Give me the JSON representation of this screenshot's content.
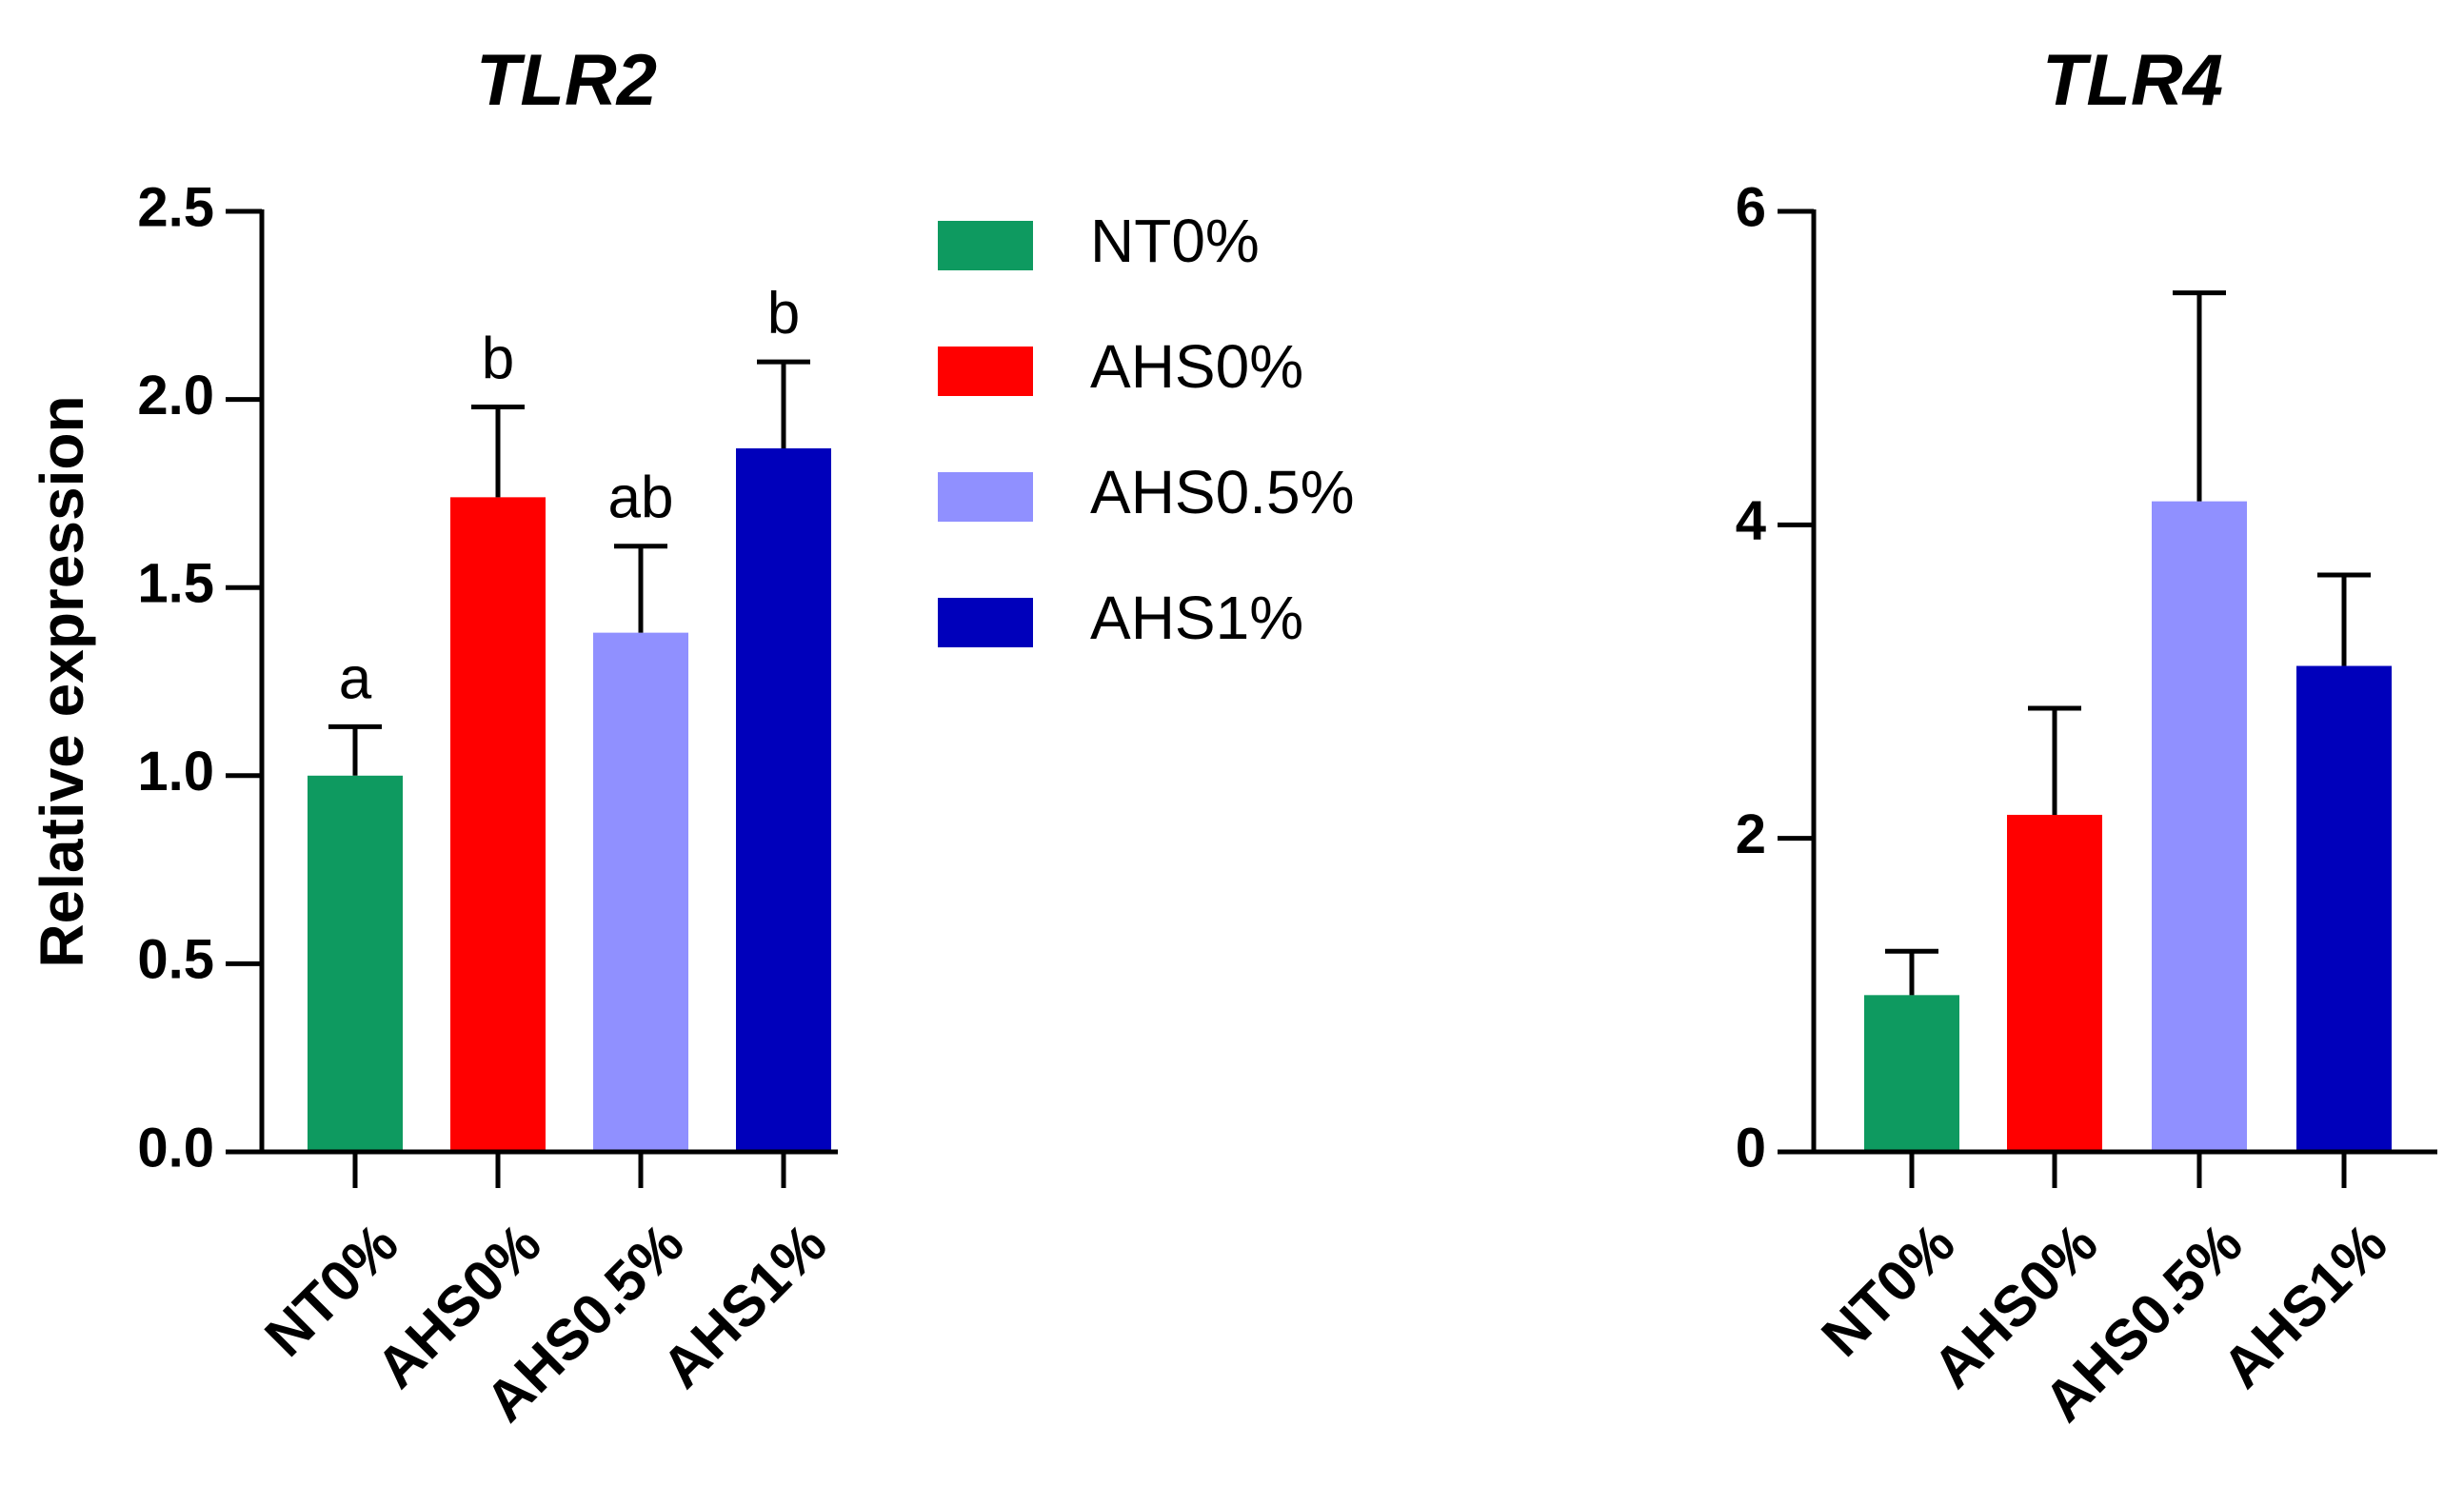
{
  "legend": [
    {
      "label": "NT0%",
      "color": "#0e9a60"
    },
    {
      "label": "AHS0%",
      "color": "#ff0000"
    },
    {
      "label": "AHS0.5%",
      "color": "#9090ff"
    },
    {
      "label": "AHS1%",
      "color": "#0000bb"
    }
  ],
  "chart_data": [
    {
      "type": "bar",
      "title": "TLR2",
      "xlabel": "",
      "ylabel": "Relative expression",
      "ylim": [
        0,
        2.5
      ],
      "yticks": [
        0.0,
        0.5,
        1.0,
        1.5,
        2.0,
        2.5
      ],
      "ytick_labels": [
        "0.0",
        "0.5",
        "1.0",
        "1.5",
        "2.0",
        "2.5"
      ],
      "categories": [
        "NT0%",
        "AHS0%",
        "AHS0.5%",
        "AHS1%"
      ],
      "values": [
        1.0,
        1.74,
        1.38,
        1.87
      ],
      "errors": [
        0.13,
        0.24,
        0.23,
        0.23
      ],
      "annotations": [
        "a",
        "b",
        "ab",
        "b"
      ],
      "colors": [
        "#0e9a60",
        "#ff0000",
        "#9090ff",
        "#0000bb"
      ],
      "grid": false
    },
    {
      "type": "bar",
      "title": "TLR4",
      "xlabel": "",
      "ylabel": "",
      "ylim": [
        0,
        6
      ],
      "yticks": [
        0,
        2,
        4,
        6
      ],
      "ytick_labels": [
        "0",
        "2",
        "4",
        "6"
      ],
      "categories": [
        "NT0%",
        "AHS0%",
        "AHS0.5%",
        "AHS1%"
      ],
      "values": [
        1.0,
        2.15,
        4.15,
        3.1
      ],
      "errors": [
        0.28,
        0.68,
        1.33,
        0.58
      ],
      "annotations": [
        "",
        "",
        "",
        ""
      ],
      "colors": [
        "#0e9a60",
        "#ff0000",
        "#9090ff",
        "#0000bb"
      ],
      "grid": false
    }
  ]
}
